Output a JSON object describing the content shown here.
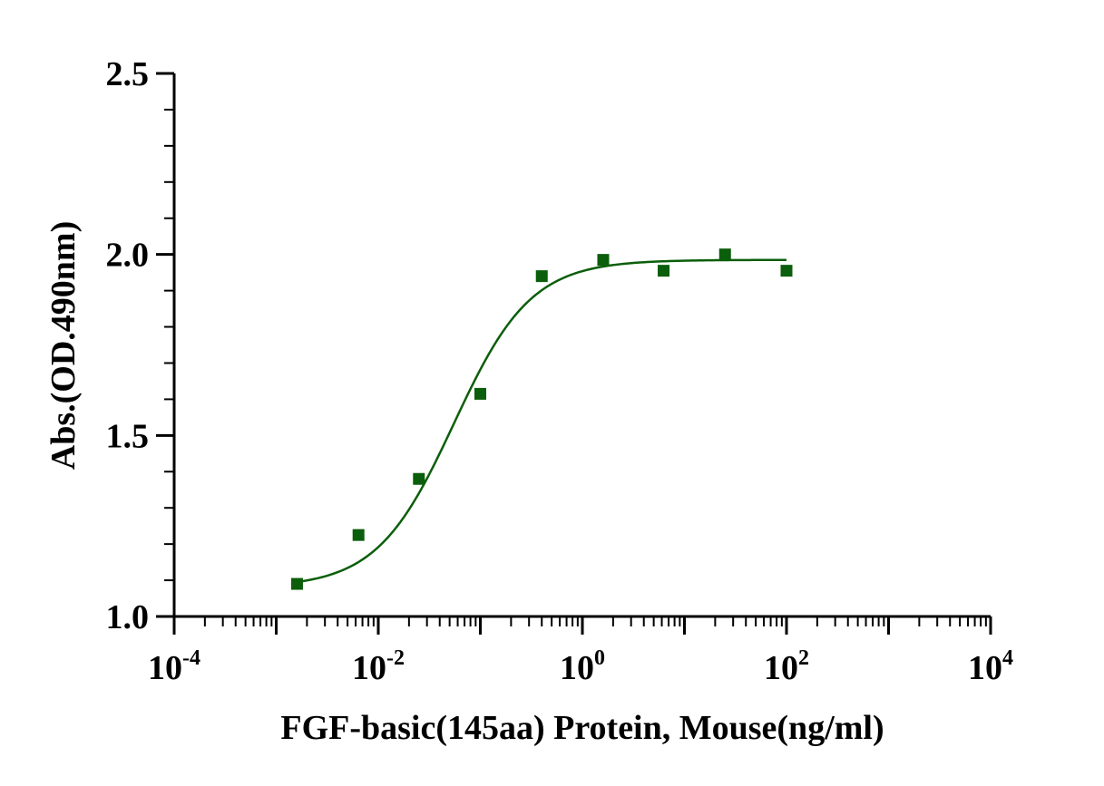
{
  "chart_data": {
    "type": "scatter",
    "title": "",
    "xlabel": "FGF-basic(145aa) Protein, Mouse(ng/ml)",
    "ylabel": "Abs.(OD.490nm)",
    "x_scale": "log10",
    "xlim": [
      0.0001,
      10000
    ],
    "ylim": [
      1.0,
      2.5
    ],
    "x_ticks": [
      {
        "base": "10",
        "exp": "-4",
        "value": 0.0001
      },
      {
        "base": "10",
        "exp": "-2",
        "value": 0.01
      },
      {
        "base": "10",
        "exp": "0",
        "value": 1
      },
      {
        "base": "10",
        "exp": "2",
        "value": 100
      },
      {
        "base": "10",
        "exp": "4",
        "value": 10000
      }
    ],
    "y_ticks": [
      "1.0",
      "1.5",
      "2.0",
      "2.5"
    ],
    "grid": false,
    "marker_color": "#0b5e0b",
    "curve_color": "#0b5e0b",
    "series": [
      {
        "marker": "square",
        "points": [
          {
            "x": 0.0016,
            "y": 1.09
          },
          {
            "x": 0.0064,
            "y": 1.225
          },
          {
            "x": 0.025,
            "y": 1.38
          },
          {
            "x": 0.1,
            "y": 1.615
          },
          {
            "x": 0.4,
            "y": 1.94
          },
          {
            "x": 1.6,
            "y": 1.985
          },
          {
            "x": 6.25,
            "y": 1.955
          },
          {
            "x": 25,
            "y": 2.0
          },
          {
            "x": 100,
            "y": 1.955
          }
        ]
      }
    ],
    "fit_curve": {
      "model": "4PL",
      "bottom": 1.08,
      "top": 1.985,
      "ec50": 0.055,
      "hill": 1.15,
      "x_range": [
        0.0016,
        100
      ]
    }
  }
}
